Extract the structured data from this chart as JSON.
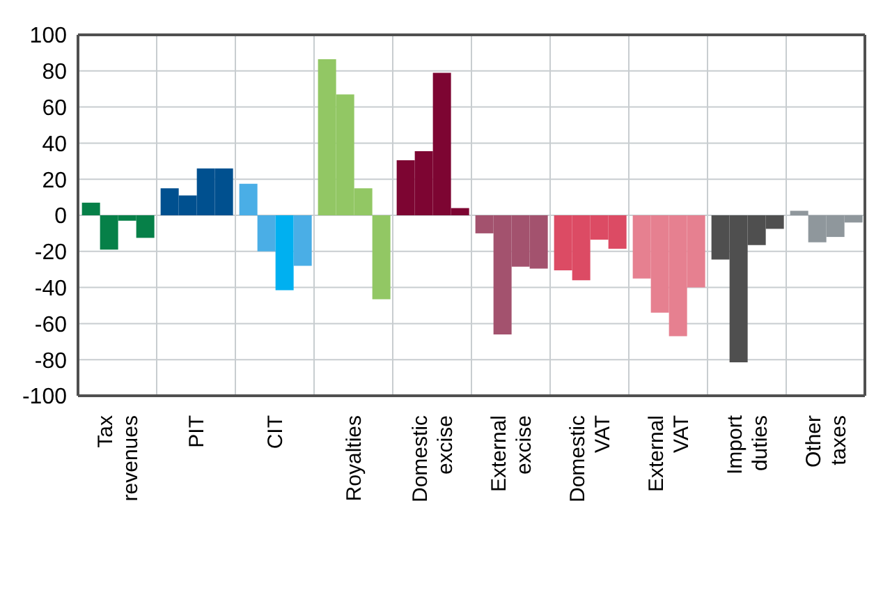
{
  "chart_data": {
    "type": "bar",
    "categories": [
      "Tax revenues",
      "PIT",
      "CIT",
      "Royalties",
      "Domestic excise",
      "External excise",
      "Domestic VAT",
      "External VAT",
      "Import duties",
      "Other taxes"
    ],
    "series": [
      {
        "values": [
          7,
          15,
          17.5,
          86.5,
          30.5,
          -10,
          -30.5,
          -35,
          -24.5,
          2.5
        ],
        "colors": [
          "#068048",
          "#00508f",
          "#4aaee6",
          "#92c764",
          "#7d0532",
          "#a3526e",
          "#dc4b64",
          "#e68090",
          "#4f4f4f",
          "#8f979c"
        ]
      },
      {
        "values": [
          -19,
          11,
          -20,
          67,
          35.5,
          -66,
          -36,
          -54,
          -81.5,
          -15
        ],
        "colors": [
          "#068048",
          "#00508f",
          "#4aaee6",
          "#92c764",
          "#7d0532",
          "#a3526e",
          "#dc4b64",
          "#e68090",
          "#4f4f4f",
          "#8f979c"
        ]
      },
      {
        "values": [
          -3,
          26,
          -41.5,
          15,
          79,
          -28.5,
          -13.5,
          -67,
          -16.5,
          -12
        ],
        "colors": [
          "#068048",
          "#00508f",
          "#00b0f0",
          "#92c764",
          "#7d0532",
          "#a3526e",
          "#dc4b64",
          "#e68090",
          "#4f4f4f",
          "#8f979c"
        ]
      },
      {
        "values": [
          -12.5,
          26,
          -28,
          -46.5,
          4,
          -29.5,
          -18.5,
          -40,
          -7.5,
          -4
        ],
        "colors": [
          "#068048",
          "#00508f",
          "#4aaee6",
          "#92c764",
          "#7d0532",
          "#a3526e",
          "#dc4b64",
          "#e68090",
          "#4f4f4f",
          "#8f979c"
        ]
      }
    ],
    "ylim": [
      -100,
      100
    ],
    "yticks": [
      -100,
      -80,
      -60,
      -40,
      -20,
      0,
      20,
      40,
      60,
      80,
      100
    ],
    "grid": true
  }
}
